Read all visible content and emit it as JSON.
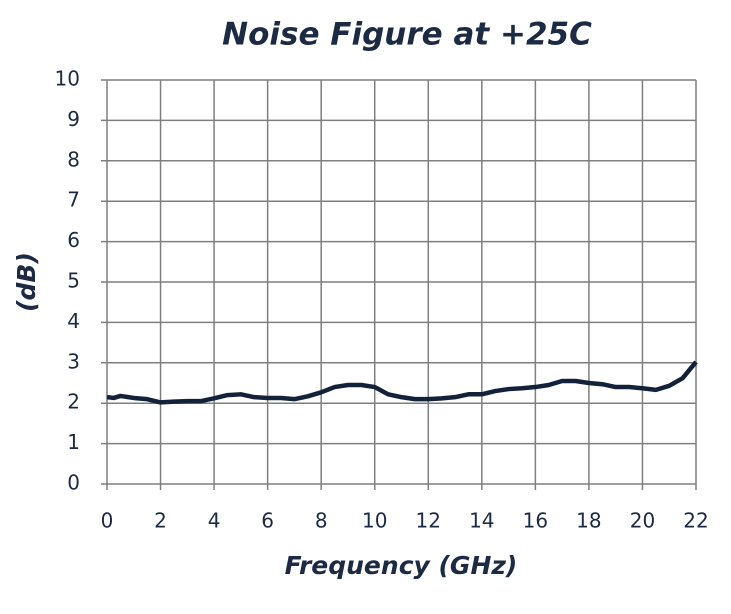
{
  "chart_data": {
    "type": "line",
    "title": "Noise Figure at +25C",
    "x_label": "Frequency (GHz)",
    "y_label": "(dB)",
    "x": [
      0,
      0.25,
      0.5,
      1,
      1.5,
      2,
      2.5,
      3,
      3.5,
      4,
      4.5,
      5,
      5.5,
      6,
      6.5,
      7,
      7.5,
      8,
      8.5,
      9,
      9.5,
      10,
      10.5,
      11,
      11.5,
      12,
      12.5,
      13,
      13.5,
      14,
      14.5,
      15,
      15.5,
      16,
      16.5,
      17,
      17.5,
      18,
      18.5,
      19,
      19.5,
      20,
      20.5,
      21,
      21.5,
      22
    ],
    "series": [
      {
        "color": "#13223a",
        "values": [
          2.15,
          2.13,
          2.18,
          2.13,
          2.1,
          2.02,
          2.04,
          2.05,
          2.05,
          2.12,
          2.2,
          2.22,
          2.15,
          2.13,
          2.13,
          2.1,
          2.17,
          2.27,
          2.4,
          2.45,
          2.45,
          2.4,
          2.22,
          2.15,
          2.1,
          2.1,
          2.12,
          2.15,
          2.22,
          2.22,
          2.3,
          2.35,
          2.37,
          2.4,
          2.45,
          2.55,
          2.55,
          2.5,
          2.47,
          2.4,
          2.4,
          2.37,
          2.33,
          2.43,
          2.62,
          3.02
        ]
      }
    ],
    "xlim": [
      0,
      22
    ],
    "xticks": [
      0,
      2,
      4,
      6,
      8,
      10,
      12,
      14,
      16,
      18,
      20,
      22
    ],
    "ylim": [
      0,
      10
    ],
    "yticks": [
      0,
      1,
      2,
      3,
      4,
      5,
      6,
      7,
      8,
      9,
      10
    ],
    "grid": true
  }
}
